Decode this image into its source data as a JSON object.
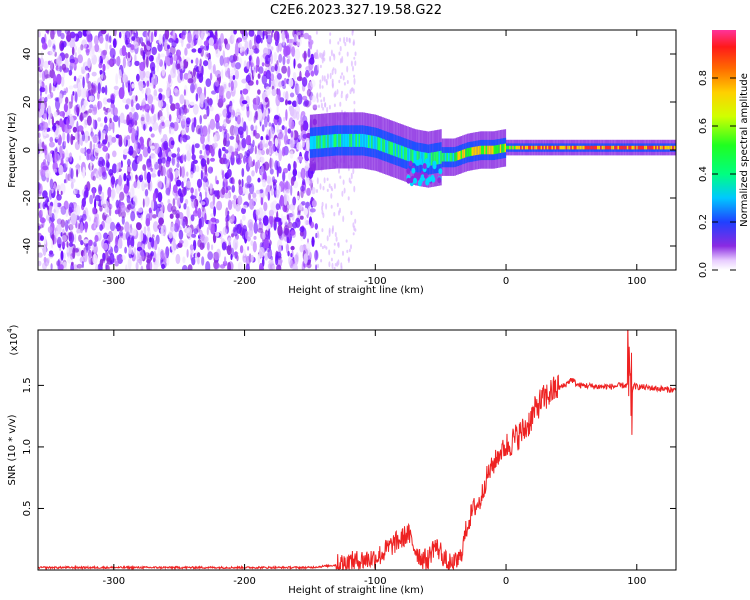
{
  "figure_title": "C2E6.2023.327.19.58.G22",
  "colors": {
    "snr_line": "#ee2222",
    "spectrogram_low": "#8a2be2",
    "spectrogram_high": "#ff1a1a"
  },
  "chart_data": [
    {
      "type": "heatmap",
      "name": "spectrogram",
      "title": "C2E6.2023.327.19.58.G22",
      "xlabel": "Height of straight line (km)",
      "ylabel": "Frequency (Hz)",
      "xlim": [
        -358,
        130
      ],
      "ylim": [
        -50,
        50
      ],
      "xticks": [
        -300,
        -200,
        -100,
        0,
        100
      ],
      "yticks": [
        40,
        20,
        0,
        -20,
        -40
      ],
      "xtick_labels": [
        "-300",
        "-200",
        "-100",
        "0",
        "100"
      ],
      "ytick_labels": [
        "40",
        "20",
        "0",
        "-20",
        "-40"
      ],
      "noise_region_x": [
        -358,
        -145
      ],
      "signal_track": {
        "x": [
          -150,
          -130,
          -110,
          -100,
          -90,
          -80,
          -70,
          -60,
          -50,
          -40,
          -30,
          -20,
          -10,
          0,
          20,
          40,
          60,
          80,
          90,
          100,
          130
        ],
        "y": [
          3,
          4,
          4,
          3,
          1,
          -1,
          -3,
          -4,
          -3,
          -3,
          -1,
          0,
          0,
          1,
          1,
          1,
          1,
          1,
          1,
          1,
          1
        ]
      },
      "colorbar": {
        "label": "Normalized spectral amplitude",
        "range": [
          0.0,
          1.0
        ],
        "ticks": [
          0.0,
          0.2,
          0.4,
          0.6,
          0.8
        ],
        "tick_labels": [
          "0.0",
          "0.2",
          "0.4",
          "0.6",
          "0.8"
        ]
      }
    },
    {
      "type": "line",
      "name": "snr",
      "xlabel": "Height of straight line (km)",
      "ylabel": "SNR (10 * v/v)",
      "y_multiplier": "(x10",
      "y_multiplier_exp": "4",
      "y_multiplier_close": ")",
      "xlim": [
        -358,
        130
      ],
      "ylim": [
        0,
        1.95
      ],
      "xticks": [
        -300,
        -200,
        -100,
        0,
        100
      ],
      "yticks": [
        0.5,
        1.0,
        1.5
      ],
      "xtick_labels": [
        "-300",
        "-200",
        "-100",
        "0",
        "100"
      ],
      "ytick_labels": [
        "0.5",
        "1.0",
        "1.5"
      ],
      "series": [
        {
          "name": "SNR",
          "x": [
            -358,
            -300,
            -250,
            -200,
            -150,
            -130,
            -120,
            -110,
            -100,
            -95,
            -90,
            -85,
            -80,
            -75,
            -70,
            -65,
            -60,
            -55,
            -50,
            -45,
            -40,
            -35,
            -30,
            -25,
            -20,
            -15,
            -10,
            -5,
            0,
            5,
            10,
            15,
            20,
            25,
            30,
            35,
            40,
            45,
            50,
            55,
            60,
            70,
            80,
            90,
            95,
            100,
            110,
            120,
            130
          ],
          "y": [
            0.02,
            0.02,
            0.02,
            0.02,
            0.02,
            0.04,
            0.06,
            0.08,
            0.1,
            0.13,
            0.18,
            0.22,
            0.25,
            0.3,
            0.18,
            0.1,
            0.08,
            0.2,
            0.15,
            0.05,
            0.04,
            0.1,
            0.35,
            0.5,
            0.55,
            0.75,
            0.85,
            0.95,
            1.0,
            1.05,
            1.1,
            1.15,
            1.25,
            1.35,
            1.4,
            1.45,
            1.48,
            1.5,
            1.55,
            1.5,
            1.5,
            1.49,
            1.49,
            1.5,
            1.5,
            1.49,
            1.48,
            1.47,
            1.46
          ]
        }
      ]
    }
  ]
}
